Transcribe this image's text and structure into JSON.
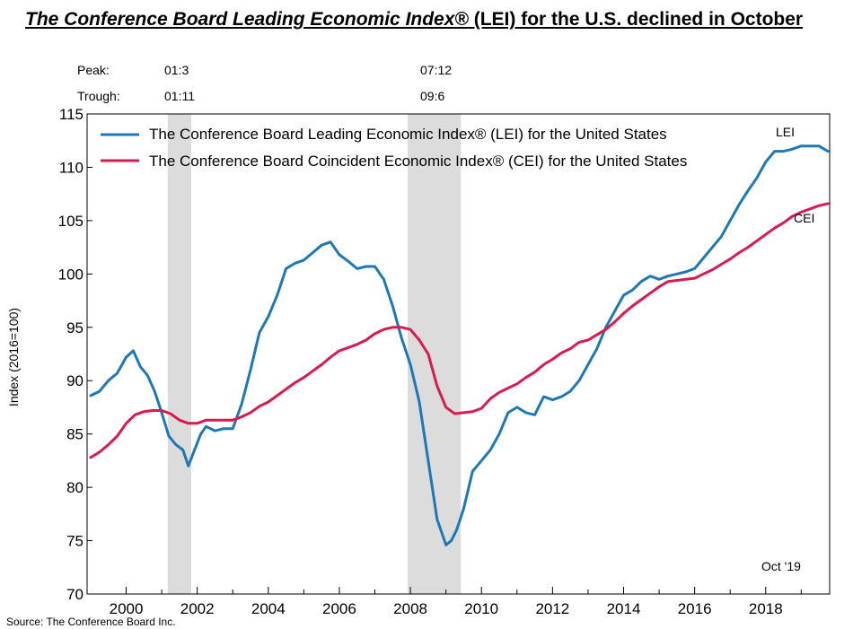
{
  "title": {
    "italic_part": "The Conference Board Leading Economic Index®",
    "regular_part": " (LEI) for the U.S. declined in October"
  },
  "source": "Source: The Conference Board Inc.",
  "colors": {
    "lei": "#1E78B4",
    "cei": "#D81B4F",
    "recession": "#DCDCDC"
  },
  "chart_data": {
    "type": "line",
    "title": "The Conference Board Leading Economic Index® (LEI) for the U.S. declined in October",
    "xlabel": "",
    "ylabel": "Index (2016=100)",
    "xlim": [
      1998.9,
      2019.8
    ],
    "ylim": [
      70,
      115
    ],
    "x_ticks": [
      2000,
      2002,
      2004,
      2006,
      2008,
      2010,
      2012,
      2014,
      2016,
      2018
    ],
    "x_tick_labels": [
      "2000",
      "2002",
      "2004",
      "2006",
      "2008",
      "2010",
      "2012",
      "2014",
      "2016",
      "2018"
    ],
    "y_ticks": [
      70,
      75,
      80,
      85,
      90,
      95,
      100,
      105,
      110,
      115
    ],
    "y_tick_labels": [
      "70",
      "75",
      "80",
      "85",
      "90",
      "95",
      "100",
      "105",
      "110",
      "115"
    ],
    "recessions": [
      {
        "peak": "01:3",
        "trough": "01:11",
        "start": 2001.17,
        "end": 2001.83
      },
      {
        "peak": "07:12",
        "trough": "09:6",
        "start": 2007.92,
        "end": 2009.42
      }
    ],
    "turning_points": {
      "peak_label": "Peak:",
      "trough_label": "Trough:",
      "peaks": [
        "01:3",
        "07:12"
      ],
      "troughs": [
        "01:11",
        "09:6"
      ]
    },
    "legend": {
      "position": "top-left",
      "entries": [
        "The Conference Board Leading Economic Index® (LEI) for the United States",
        "The Conference Board Coincident Economic Index® (CEI) for the United States"
      ]
    },
    "series": [
      {
        "name": "The Conference Board Leading Economic Index® (LEI) for the United States",
        "short_label": "LEI",
        "x": [
          1999.0,
          1999.25,
          1999.5,
          1999.75,
          2000.0,
          2000.2,
          2000.4,
          2000.6,
          2000.8,
          2001.0,
          2001.2,
          2001.4,
          2001.6,
          2001.75,
          2001.9,
          2002.1,
          2002.25,
          2002.5,
          2002.75,
          2003.0,
          2003.25,
          2003.5,
          2003.75,
          2004.0,
          2004.25,
          2004.5,
          2004.75,
          2005.0,
          2005.25,
          2005.5,
          2005.75,
          2006.0,
          2006.25,
          2006.5,
          2006.75,
          2007.0,
          2007.25,
          2007.5,
          2007.75,
          2008.0,
          2008.25,
          2008.5,
          2008.75,
          2009.0,
          2009.15,
          2009.3,
          2009.5,
          2009.75,
          2010.0,
          2010.25,
          2010.5,
          2010.75,
          2011.0,
          2011.25,
          2011.5,
          2011.75,
          2012.0,
          2012.25,
          2012.5,
          2012.75,
          2013.0,
          2013.25,
          2013.5,
          2013.75,
          2014.0,
          2014.25,
          2014.5,
          2014.75,
          2015.0,
          2015.25,
          2015.5,
          2015.75,
          2016.0,
          2016.25,
          2016.5,
          2016.75,
          2017.0,
          2017.25,
          2017.5,
          2017.75,
          2018.0,
          2018.25,
          2018.5,
          2018.75,
          2019.0,
          2019.25,
          2019.5,
          2019.75
        ],
        "values": [
          88.6,
          89.0,
          90.0,
          90.7,
          92.2,
          92.8,
          91.3,
          90.5,
          89.0,
          87.0,
          84.8,
          84.0,
          83.5,
          82.0,
          83.3,
          85.0,
          85.7,
          85.3,
          85.5,
          85.5,
          87.8,
          91.0,
          94.5,
          96.0,
          98.0,
          100.5,
          101.0,
          101.3,
          102.0,
          102.7,
          103.0,
          101.8,
          101.2,
          100.5,
          100.7,
          100.7,
          99.5,
          97.0,
          94.0,
          91.5,
          88.0,
          82.5,
          77.0,
          74.6,
          75.0,
          76.0,
          78.0,
          81.5,
          82.5,
          83.5,
          85.0,
          87.0,
          87.5,
          87.0,
          86.8,
          88.5,
          88.2,
          88.5,
          89.0,
          90.0,
          91.5,
          93.0,
          95.0,
          96.5,
          98.0,
          98.5,
          99.3,
          99.8,
          99.5,
          99.8,
          100.0,
          100.2,
          100.5,
          101.5,
          102.5,
          103.5,
          105.0,
          106.5,
          107.8,
          109.0,
          110.5,
          111.5,
          111.5,
          111.7,
          112.0,
          112.0,
          112.0,
          111.5
        ]
      },
      {
        "name": "The Conference Board Coincident Economic Index® (CEI) for the United States",
        "short_label": "CEI",
        "x": [
          1999.0,
          1999.25,
          1999.5,
          1999.75,
          2000.0,
          2000.25,
          2000.5,
          2000.75,
          2001.0,
          2001.25,
          2001.5,
          2001.75,
          2002.0,
          2002.25,
          2002.5,
          2002.75,
          2003.0,
          2003.25,
          2003.5,
          2003.75,
          2004.0,
          2004.25,
          2004.5,
          2004.75,
          2005.0,
          2005.25,
          2005.5,
          2005.75,
          2006.0,
          2006.25,
          2006.5,
          2006.75,
          2007.0,
          2007.25,
          2007.5,
          2007.75,
          2008.0,
          2008.25,
          2008.5,
          2008.75,
          2009.0,
          2009.25,
          2009.5,
          2009.75,
          2010.0,
          2010.25,
          2010.5,
          2010.75,
          2011.0,
          2011.25,
          2011.5,
          2011.75,
          2012.0,
          2012.25,
          2012.5,
          2012.75,
          2013.0,
          2013.25,
          2013.5,
          2013.75,
          2014.0,
          2014.25,
          2014.5,
          2014.75,
          2015.0,
          2015.25,
          2015.5,
          2015.75,
          2016.0,
          2016.25,
          2016.5,
          2016.75,
          2017.0,
          2017.25,
          2017.5,
          2017.75,
          2018.0,
          2018.25,
          2018.5,
          2018.75,
          2019.0,
          2019.25,
          2019.5,
          2019.75
        ],
        "values": [
          82.8,
          83.3,
          84.0,
          84.8,
          86.0,
          86.8,
          87.1,
          87.2,
          87.2,
          86.9,
          86.3,
          86.0,
          86.0,
          86.3,
          86.3,
          86.3,
          86.3,
          86.6,
          87.0,
          87.6,
          88.0,
          88.6,
          89.2,
          89.8,
          90.3,
          90.9,
          91.5,
          92.2,
          92.8,
          93.1,
          93.4,
          93.8,
          94.4,
          94.8,
          95.0,
          95.0,
          94.8,
          93.8,
          92.5,
          89.5,
          87.5,
          86.9,
          87.0,
          87.1,
          87.4,
          88.3,
          88.9,
          89.3,
          89.7,
          90.3,
          90.8,
          91.5,
          92.0,
          92.6,
          93.0,
          93.6,
          93.8,
          94.3,
          94.8,
          95.5,
          96.3,
          97.0,
          97.6,
          98.2,
          98.8,
          99.3,
          99.4,
          99.5,
          99.6,
          100.0,
          100.4,
          100.9,
          101.4,
          102.0,
          102.5,
          103.1,
          103.7,
          104.3,
          104.8,
          105.4,
          105.8,
          106.1,
          106.4,
          106.6
        ]
      }
    ],
    "annotations": {
      "date_label": "Oct '19"
    }
  }
}
